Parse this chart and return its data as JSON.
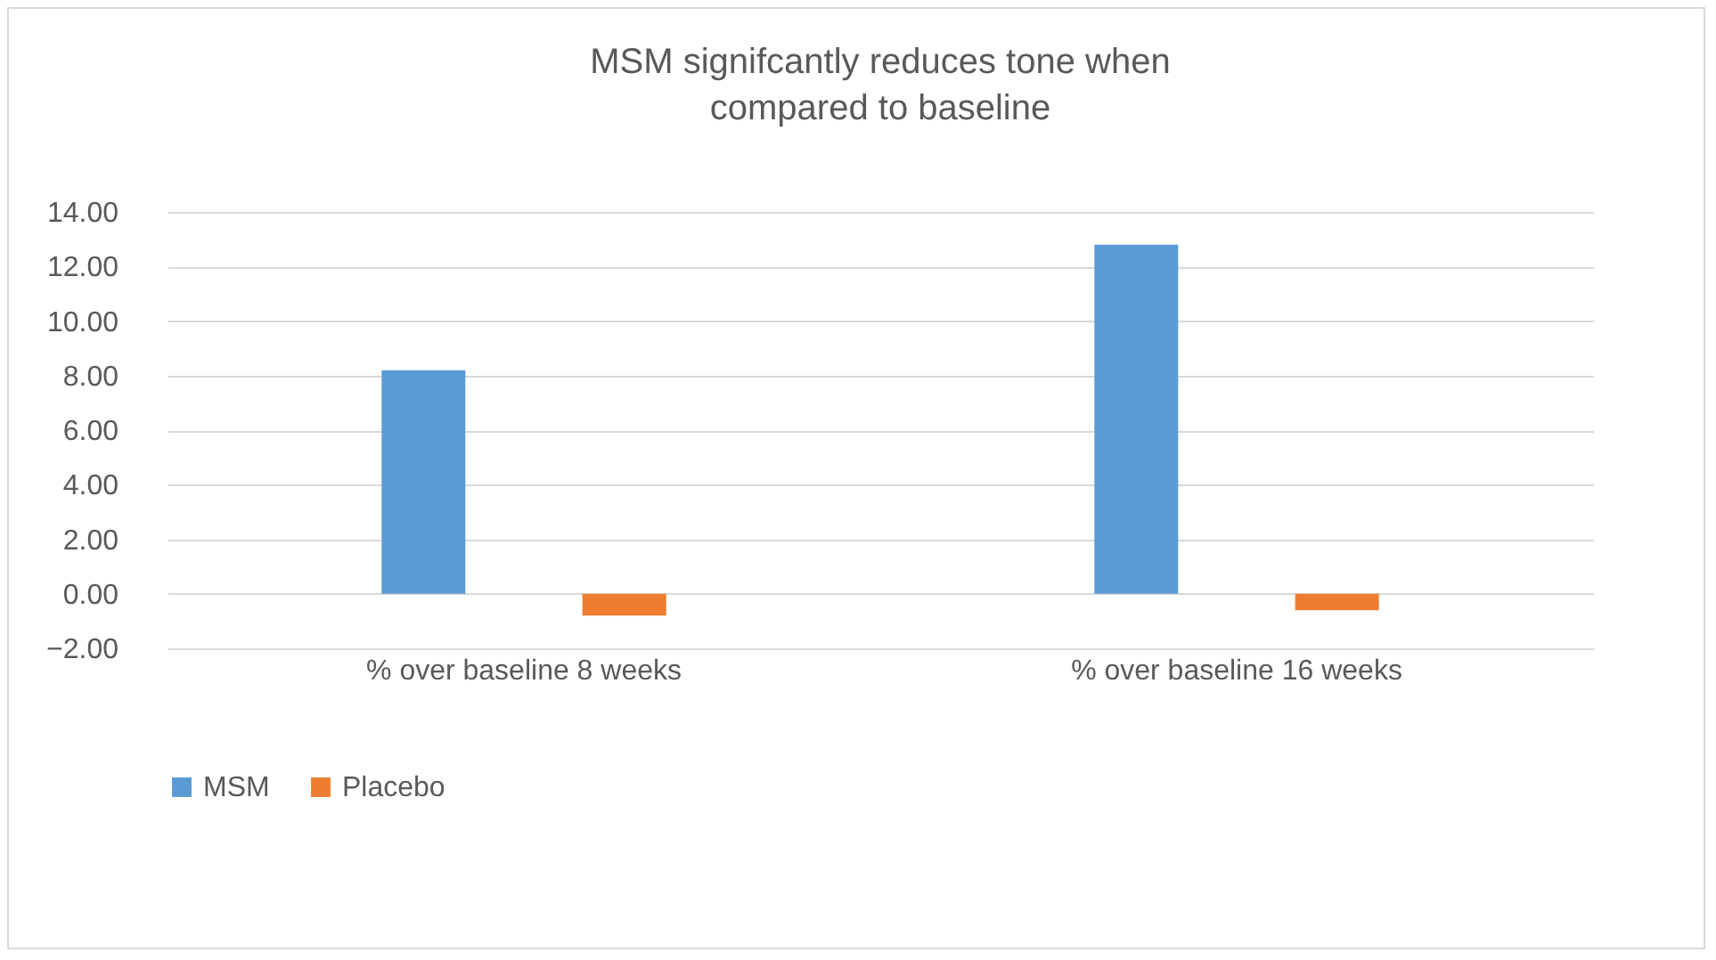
{
  "chart_data": {
    "type": "bar",
    "title": [
      "MSM signifcantly reduces tone when",
      "compared to baseline"
    ],
    "categories": [
      "% over baseline 8 weeks",
      "% over baseline 16 weeks"
    ],
    "series": [
      {
        "name": "MSM",
        "color": "#5b9bd5",
        "values": [
          8.2,
          12.8
        ]
      },
      {
        "name": "Placebo",
        "color": "#ed7d31",
        "values": [
          -0.8,
          -0.6
        ]
      }
    ],
    "ylim": [
      -2,
      14
    ],
    "yticks": [
      {
        "value": -2,
        "label": "−2.00"
      },
      {
        "value": 0,
        "label": "0.00"
      },
      {
        "value": 2,
        "label": "2.00"
      },
      {
        "value": 4,
        "label": "4.00"
      },
      {
        "value": 6,
        "label": "6.00"
      },
      {
        "value": 8,
        "label": "8.00"
      },
      {
        "value": 10,
        "label": "10.00"
      },
      {
        "value": 12,
        "label": "12.00"
      },
      {
        "value": 14,
        "label": "14.00"
      }
    ],
    "grid": "y",
    "legend": "bottom"
  }
}
